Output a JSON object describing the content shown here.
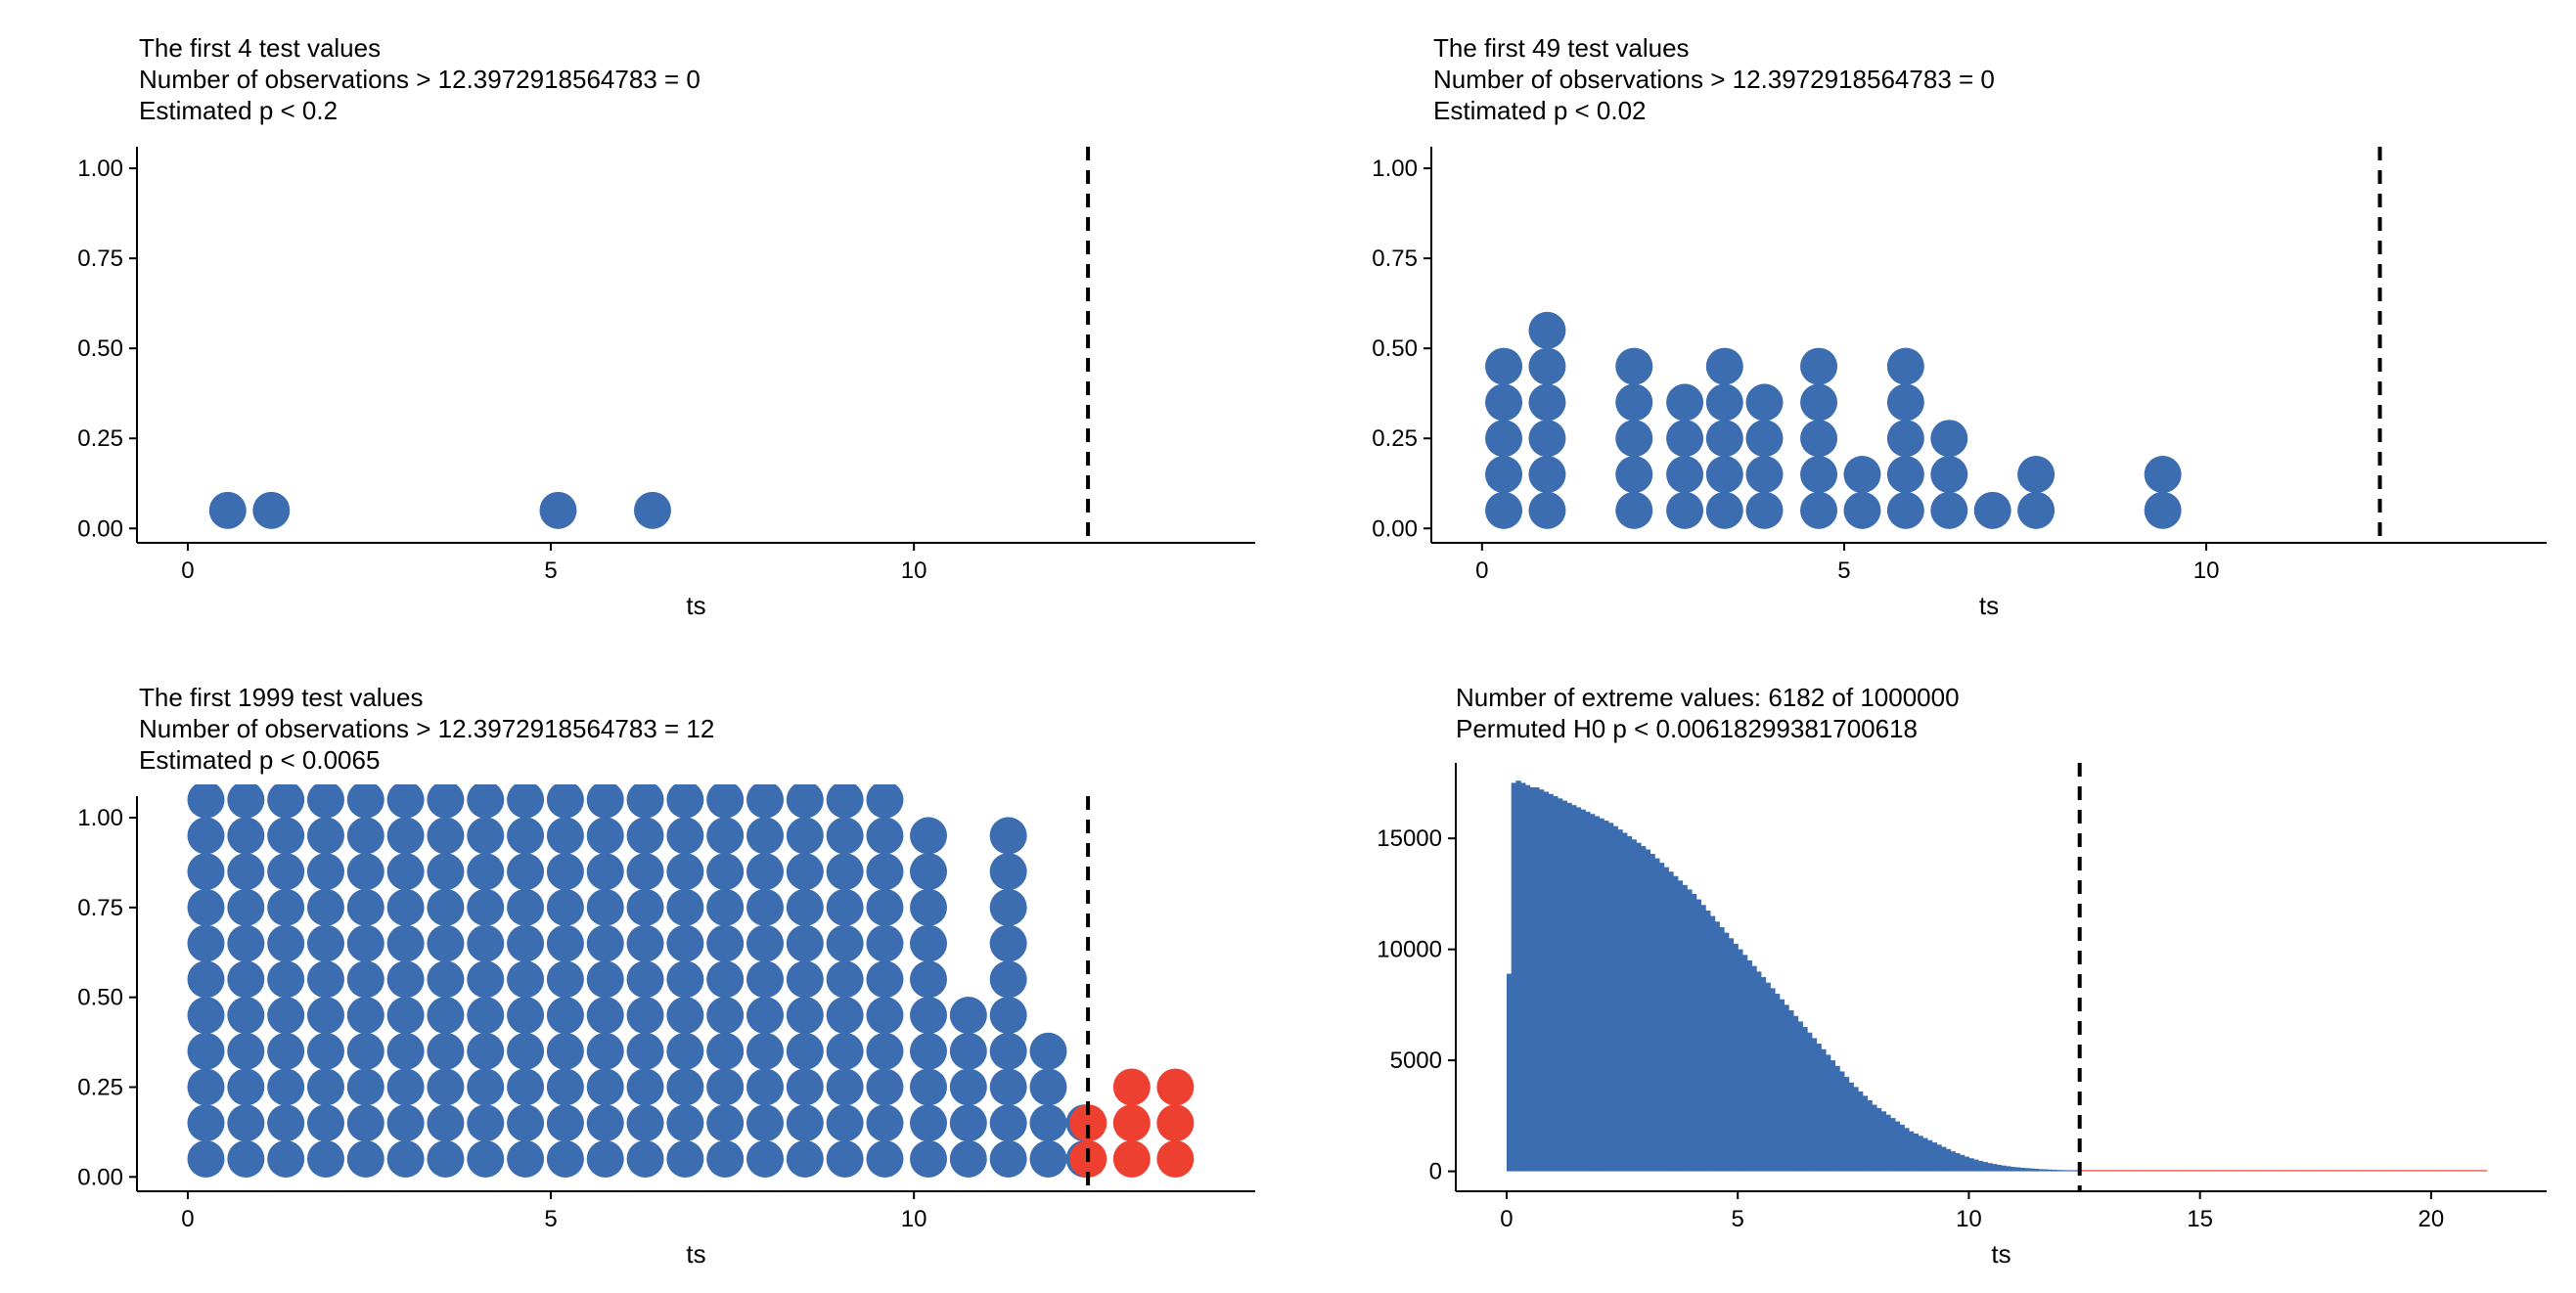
{
  "chart_data": [
    {
      "type": "scatter",
      "plot_style": "dotplot",
      "title_lines": [
        "The first 4 test values",
        "Number of observations > 12.3972918564783 = 0",
        "Estimated p < 0.2"
      ],
      "xlabel": "ts",
      "ylabel": "",
      "xlim": [
        -0.7,
        14.7
      ],
      "ylim": [
        -0.04,
        1.06
      ],
      "x_ticks": [
        0,
        5,
        10
      ],
      "y_ticks": [
        0,
        0.25,
        0.5,
        0.75,
        1
      ],
      "y_tick_labels": [
        "0.00",
        "0.25",
        "0.50",
        "0.75",
        "1.00"
      ],
      "reference_x": 12.3972918564783,
      "colors": {
        "normal": "#3C6DB0",
        "extreme": "#EE4031"
      },
      "grid": false,
      "legend": "none",
      "columns": [
        {
          "x": 0.55,
          "count": 1,
          "extreme": false
        },
        {
          "x": 1.15,
          "count": 1,
          "extreme": false
        },
        {
          "x": 5.1,
          "count": 1,
          "extreme": false
        },
        {
          "x": 6.4,
          "count": 1,
          "extreme": false
        }
      ]
    },
    {
      "type": "scatter",
      "plot_style": "dotplot",
      "title_lines": [
        "The first 49 test values",
        "Number of observations > 12.3972918564783 = 0",
        "Estimated p < 0.02"
      ],
      "xlabel": "ts",
      "ylabel": "",
      "xlim": [
        -0.7,
        14.7
      ],
      "ylim": [
        -0.04,
        1.06
      ],
      "x_ticks": [
        0,
        5,
        10
      ],
      "y_ticks": [
        0,
        0.25,
        0.5,
        0.75,
        1
      ],
      "y_tick_labels": [
        "0.00",
        "0.25",
        "0.50",
        "0.75",
        "1.00"
      ],
      "reference_x": 12.3972918564783,
      "colors": {
        "normal": "#3C6DB0",
        "extreme": "#EE4031"
      },
      "grid": false,
      "legend": "none",
      "columns": [
        {
          "x": 0.3,
          "count": 5,
          "extreme": false
        },
        {
          "x": 0.9,
          "count": 6,
          "extreme": false
        },
        {
          "x": 2.1,
          "count": 5,
          "extreme": false
        },
        {
          "x": 2.8,
          "count": 4,
          "extreme": false
        },
        {
          "x": 3.35,
          "count": 5,
          "extreme": false
        },
        {
          "x": 3.9,
          "count": 4,
          "extreme": false
        },
        {
          "x": 4.65,
          "count": 5,
          "extreme": false
        },
        {
          "x": 5.25,
          "count": 2,
          "extreme": false
        },
        {
          "x": 5.85,
          "count": 5,
          "extreme": false
        },
        {
          "x": 6.45,
          "count": 3,
          "extreme": false
        },
        {
          "x": 7.05,
          "count": 1,
          "extreme": false
        },
        {
          "x": 7.65,
          "count": 2,
          "extreme": false
        },
        {
          "x": 9.4,
          "count": 2,
          "extreme": false
        }
      ]
    },
    {
      "type": "scatter",
      "plot_style": "dotplot",
      "title_lines": [
        "The first 1999 test values",
        "Number of observations > 12.3972918564783 = 12",
        "Estimated p < 0.0065"
      ],
      "xlabel": "ts",
      "ylabel": "",
      "xlim": [
        -0.7,
        14.7
      ],
      "ylim": [
        -0.04,
        1.06
      ],
      "x_ticks": [
        0,
        5,
        10
      ],
      "y_ticks": [
        0,
        0.25,
        0.5,
        0.75,
        1
      ],
      "y_tick_labels": [
        "0.00",
        "0.25",
        "0.50",
        "0.75",
        "1.00"
      ],
      "reference_x": 12.3972918564783,
      "colors": {
        "normal": "#3C6DB0",
        "extreme": "#EE4031"
      },
      "grid": false,
      "legend": "none",
      "columns": [
        {
          "x": 0.25,
          "count": 40,
          "extreme": false
        },
        {
          "x": 0.8,
          "count": 40,
          "extreme": false
        },
        {
          "x": 1.35,
          "count": 40,
          "extreme": false
        },
        {
          "x": 1.9,
          "count": 40,
          "extreme": false
        },
        {
          "x": 2.45,
          "count": 40,
          "extreme": false
        },
        {
          "x": 3.0,
          "count": 40,
          "extreme": false
        },
        {
          "x": 3.55,
          "count": 40,
          "extreme": false
        },
        {
          "x": 4.1,
          "count": 40,
          "extreme": false
        },
        {
          "x": 4.65,
          "count": 40,
          "extreme": false
        },
        {
          "x": 5.2,
          "count": 40,
          "extreme": false
        },
        {
          "x": 5.75,
          "count": 40,
          "extreme": false
        },
        {
          "x": 6.3,
          "count": 40,
          "extreme": false
        },
        {
          "x": 6.85,
          "count": 40,
          "extreme": false
        },
        {
          "x": 7.4,
          "count": 40,
          "extreme": false
        },
        {
          "x": 7.95,
          "count": 40,
          "extreme": false
        },
        {
          "x": 8.5,
          "count": 40,
          "extreme": false
        },
        {
          "x": 9.05,
          "count": 40,
          "extreme": false
        },
        {
          "x": 9.6,
          "count": 40,
          "extreme": false
        },
        {
          "x": 10.2,
          "count": 10,
          "extreme": false
        },
        {
          "x": 10.75,
          "count": 5,
          "extreme": false
        },
        {
          "x": 11.3,
          "count": 10,
          "extreme": false
        },
        {
          "x": 11.85,
          "count": 4,
          "extreme": false
        },
        {
          "x": 12.35,
          "count": 2,
          "extreme": false
        },
        {
          "x": 12.4,
          "count": 2,
          "extreme": true
        },
        {
          "x": 13.0,
          "count": 3,
          "extreme": true
        },
        {
          "x": 13.6,
          "count": 3,
          "extreme": true
        }
      ]
    },
    {
      "type": "bar",
      "plot_style": "histogram",
      "title_lines": [
        "Number of extreme values: 6182 of 1000000",
        "Permuted H0 p < 0.00618299381700618"
      ],
      "xlabel": "ts",
      "ylabel": "",
      "xlim": [
        -1.1,
        22.5
      ],
      "ylim": [
        -900,
        18400
      ],
      "x_ticks": [
        0,
        5,
        10,
        15,
        20
      ],
      "y_ticks": [
        0,
        5000,
        10000,
        15000
      ],
      "y_tick_labels": [
        "0",
        "5000",
        "10000",
        "15000"
      ],
      "reference_x": 12.3972918564783,
      "colors": {
        "normal": "#3C6DB0",
        "extreme": "#EE4031"
      },
      "grid": false,
      "legend": "none",
      "bin_width": 0.1,
      "bins_start": 0,
      "heights": [
        8900,
        17500,
        17600,
        17500,
        17400,
        17300,
        17300,
        17200,
        17100,
        17000,
        16900,
        16800,
        16700,
        16600,
        16500,
        16400,
        16300,
        16200,
        16100,
        16000,
        15900,
        15800,
        15700,
        15550,
        15400,
        15250,
        15100,
        14950,
        14800,
        14650,
        14500,
        14300,
        14100,
        13900,
        13700,
        13500,
        13300,
        13100,
        12900,
        12700,
        12500,
        12250,
        12000,
        11750,
        11500,
        11250,
        11000,
        10750,
        10500,
        10250,
        10000,
        9750,
        9500,
        9250,
        9000,
        8750,
        8500,
        8250,
        8000,
        7750,
        7500,
        7250,
        7000,
        6750,
        6500,
        6250,
        6000,
        5750,
        5500,
        5250,
        5000,
        4750,
        4500,
        4250,
        4000,
        3800,
        3600,
        3400,
        3200,
        3000,
        2850,
        2700,
        2550,
        2400,
        2250,
        2100,
        1950,
        1800,
        1700,
        1600,
        1500,
        1400,
        1300,
        1200,
        1100,
        1000,
        900,
        820,
        740,
        660,
        590,
        530,
        470,
        420,
        370,
        330,
        290,
        260,
        230,
        200,
        180,
        160,
        145,
        130,
        115,
        100,
        90,
        80,
        70,
        62,
        55,
        48,
        42,
        37,
        32,
        28,
        24,
        20,
        17,
        14,
        12,
        10,
        8,
        6,
        5,
        4,
        3,
        3,
        2,
        2,
        2,
        1,
        1,
        1,
        1,
        1,
        1,
        1,
        1,
        1,
        1,
        1,
        1,
        1,
        1,
        1,
        1,
        1,
        1,
        1,
        1,
        1,
        1,
        1,
        1,
        1,
        1,
        1,
        1,
        1,
        1,
        1,
        1,
        1,
        1,
        1,
        1,
        1,
        1,
        1,
        1,
        1,
        1,
        1,
        1,
        1,
        1,
        1,
        1,
        1,
        1,
        1,
        1,
        1,
        1,
        1,
        1,
        1,
        1,
        1,
        1,
        1,
        1,
        1,
        1,
        1,
        1,
        1,
        1,
        1,
        1,
        1
      ]
    }
  ]
}
